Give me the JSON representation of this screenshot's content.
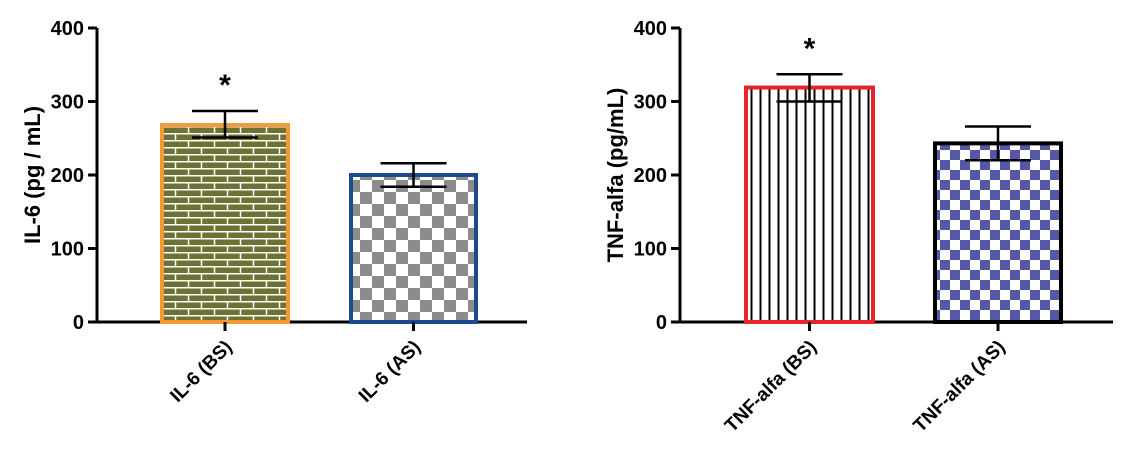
{
  "chart_data": [
    {
      "type": "bar",
      "ylabel": "IL-6 (pg / mL)",
      "ylim": [
        0,
        400
      ],
      "yticks": [
        0,
        100,
        200,
        300,
        400
      ],
      "grid": false,
      "bars": [
        {
          "category": "IL-6 (BS)",
          "value": 268,
          "error_upper": 287,
          "error_lower": 251,
          "significance": "*",
          "pattern": "brick",
          "fill_color": "#6e7134",
          "edge_color": "#f39a35"
        },
        {
          "category": "IL-6 (AS)",
          "value": 200,
          "error_upper": 216,
          "error_lower": 184,
          "significance": "",
          "pattern": "checker",
          "fill_color": "#8c8c8c",
          "edge_color": "#1d4a8a"
        }
      ]
    },
    {
      "type": "bar",
      "ylabel": "TNF-alfa (pg/mL)",
      "ylim": [
        0,
        400
      ],
      "yticks": [
        0,
        100,
        200,
        300,
        400
      ],
      "grid": false,
      "bars": [
        {
          "category": "TNF-alfa (BS)",
          "value": 319,
          "error_upper": 337,
          "error_lower": 300,
          "significance": "*",
          "pattern": "vertical-lines",
          "fill_color": "#000000",
          "edge_color": "#e8242b"
        },
        {
          "category": "TNF-alfa (AS)",
          "value": 243,
          "error_upper": 266,
          "error_lower": 220,
          "significance": "",
          "pattern": "checker",
          "fill_color": "#5558a6",
          "edge_color": "#000000"
        }
      ]
    }
  ]
}
